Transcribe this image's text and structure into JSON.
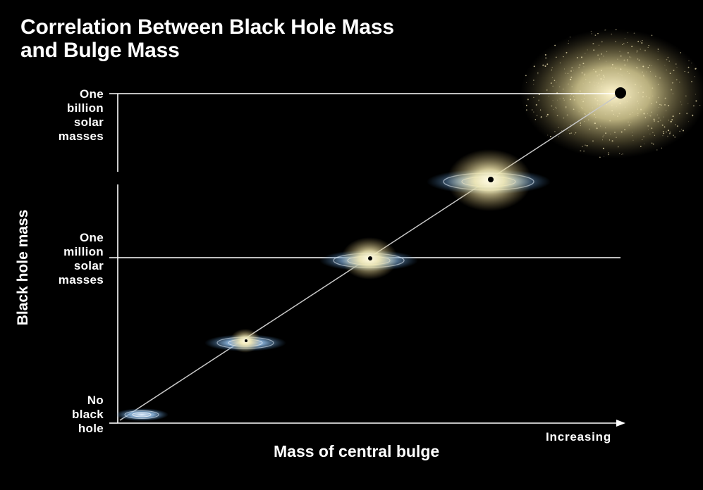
{
  "title": {
    "line1": "Correlation Between Black Hole Mass",
    "line2": "and Bulge Mass"
  },
  "y_axis": {
    "title": "Black hole mass",
    "levels": [
      {
        "key": "billion",
        "lines": [
          "One",
          "billion",
          "solar",
          "masses"
        ]
      },
      {
        "key": "million",
        "lines": [
          "One",
          "million",
          "solar",
          "masses"
        ]
      },
      {
        "key": "none",
        "lines": [
          "No",
          "black",
          "hole"
        ]
      }
    ]
  },
  "x_axis": {
    "title": "Mass of central bulge",
    "direction_label": "Increasing"
  },
  "colors": {
    "background": "#000000",
    "axis": "#ffffff",
    "trend_line": "#c8c8c8",
    "disk": "#8ab4dc",
    "bulge": "#f4e9b0"
  },
  "galaxies": [
    {
      "type": "disk-only",
      "black_hole": false
    },
    {
      "type": "small-bulge",
      "black_hole": true
    },
    {
      "type": "medium-bulge",
      "black_hole": true
    },
    {
      "type": "large-bulge",
      "black_hole": true
    },
    {
      "type": "elliptical",
      "black_hole": true
    }
  ]
}
